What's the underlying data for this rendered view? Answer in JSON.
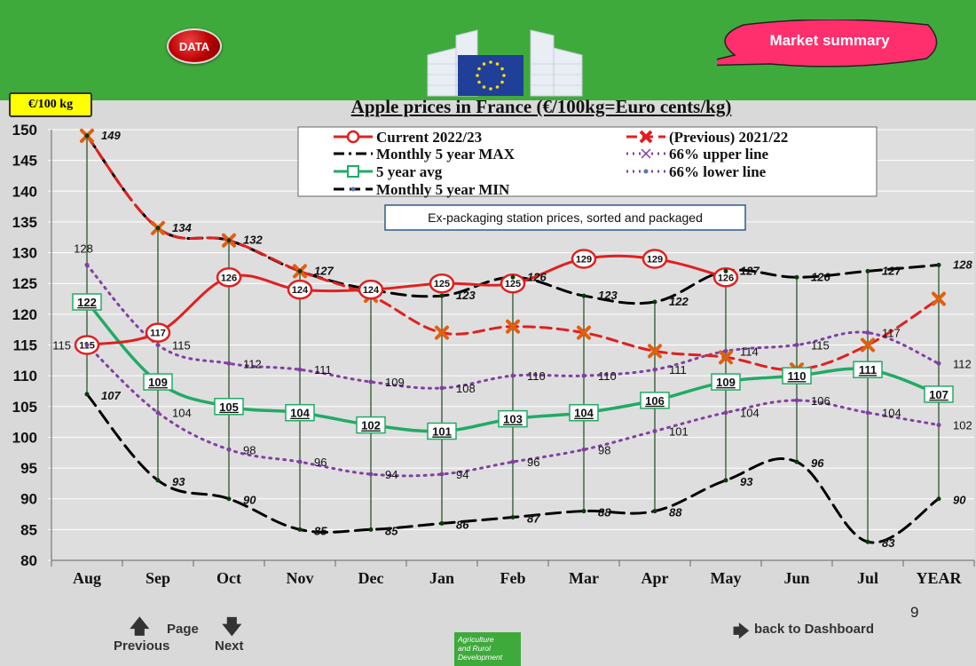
{
  "header": {
    "data_button": "DATA",
    "market_summary": "Market summary",
    "unit_badge": "€/100 kg",
    "colors": {
      "band": "#3faa3c",
      "eu_blue": "#1f3f99",
      "eu_star": "#ffdd00",
      "bubble": "#ff2f6e"
    }
  },
  "footer": {
    "previous": "Previous",
    "page": "Page",
    "next": "Next",
    "back": "back to Dashboard",
    "page_number": "9",
    "agri_line1": "Agriculture",
    "agri_line2": "and Rurol",
    "agri_line3": "Development"
  },
  "chart_data": {
    "type": "line",
    "title": "Apple prices in France (€/100kg=Euro cents/kg)",
    "annotation": "Ex-packaging station prices, sorted and packaged",
    "categories": [
      "Aug",
      "Sep",
      "Oct",
      "Nov",
      "Dec",
      "Jan",
      "Feb",
      "Mar",
      "Apr",
      "May",
      "Jun",
      "Jul",
      "YEAR"
    ],
    "ylim": [
      80,
      150
    ],
    "yticks": [
      80,
      85,
      90,
      95,
      100,
      105,
      110,
      115,
      120,
      125,
      130,
      135,
      140,
      145,
      150
    ],
    "series": [
      {
        "name": "Current 2022/23",
        "color": "#e02020",
        "values": [
          115,
          117,
          126,
          124,
          124,
          125,
          125,
          129,
          129,
          126,
          null,
          null,
          null
        ],
        "labels": [
          "115",
          "117",
          "126",
          "124",
          "124",
          "125",
          "125",
          "129",
          "129",
          "126",
          "",
          "",
          ""
        ]
      },
      {
        "name": "(Previous) 2021/22",
        "color": "#e02020",
        "values": [
          149,
          134,
          132,
          127,
          123,
          117,
          118,
          117,
          114,
          113,
          111,
          115,
          122.5
        ],
        "labels": [
          "",
          "",
          "",
          "",
          "",
          "",
          "",
          "",
          "",
          "",
          "",
          "",
          ""
        ]
      },
      {
        "name": "Monthly 5 year MAX",
        "color": "#000000",
        "values": [
          149,
          134,
          132,
          127,
          124,
          123,
          126,
          123,
          122,
          127,
          126,
          127,
          128
        ],
        "labels": [
          "149",
          "134",
          "132",
          "127",
          "",
          "123",
          "126",
          "123",
          "122",
          "127",
          "126",
          "127",
          "128"
        ]
      },
      {
        "name": "66% upper line",
        "color": "#8040a0",
        "values": [
          128,
          115,
          112,
          111,
          109,
          108,
          110,
          110,
          111,
          114,
          115,
          117,
          112
        ],
        "labels": [
          "128",
          "115",
          "112",
          "111",
          "109",
          "108",
          "110",
          "110",
          "111",
          "114",
          "115",
          "117",
          "112"
        ]
      },
      {
        "name": "5 year avg",
        "color": "#22aa66",
        "values": [
          122,
          109,
          105,
          104,
          102,
          101,
          103,
          104,
          106,
          109,
          110,
          111,
          107
        ],
        "labels": [
          "122",
          "109",
          "105",
          "104",
          "102",
          "101",
          "103",
          "104",
          "106",
          "109",
          "110",
          "111",
          "107"
        ]
      },
      {
        "name": "66% lower line",
        "color": "#8040a0",
        "values": [
          115,
          104,
          98,
          96,
          94,
          94,
          96,
          98,
          101,
          104,
          106,
          104,
          102
        ],
        "labels": [
          "115",
          "104",
          "98",
          "96",
          "94",
          "94",
          "96",
          "98",
          "101",
          "104",
          "106",
          "104",
          "102"
        ]
      },
      {
        "name": "Monthly 5 year MIN",
        "color": "#000000",
        "values": [
          107,
          93,
          90,
          85,
          85,
          86,
          87,
          88,
          88,
          93,
          96,
          83,
          90
        ],
        "labels": [
          "107",
          "93",
          "90",
          "85",
          "85",
          "86",
          "87",
          "88",
          "88",
          "93",
          "96",
          "83",
          "90"
        ]
      }
    ],
    "legend_placement": "top"
  }
}
